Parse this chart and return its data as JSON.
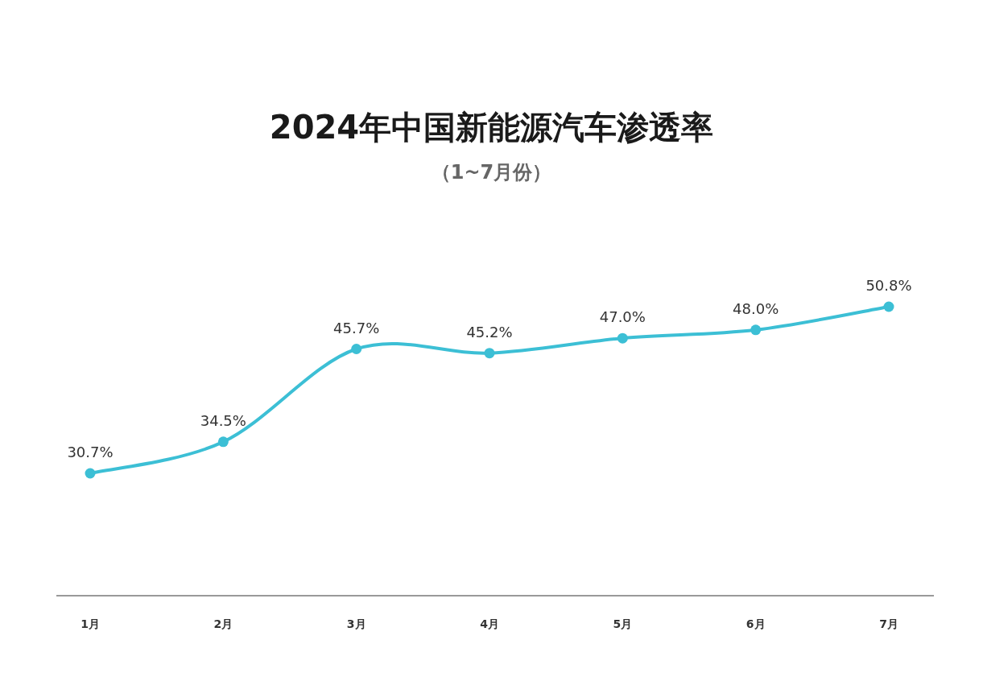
{
  "chart_data": {
    "type": "line",
    "title": "2024年中国新能源汽车渗透率",
    "subtitle": "（1~7月份）",
    "categories": [
      "1月",
      "2月",
      "3月",
      "4月",
      "5月",
      "6月",
      "7月"
    ],
    "series": [
      {
        "color": "#3cbfd5",
        "values": [
          30.7,
          34.5,
          45.7,
          45.2,
          47.0,
          48.0,
          50.8
        ],
        "value_labels": [
          "30.7%",
          "34.5%",
          "45.7%",
          "45.2%",
          "47.0%",
          "48.0%",
          "50.8%"
        ]
      }
    ],
    "marker": "circle",
    "line_style": "solid",
    "grid": false
  }
}
